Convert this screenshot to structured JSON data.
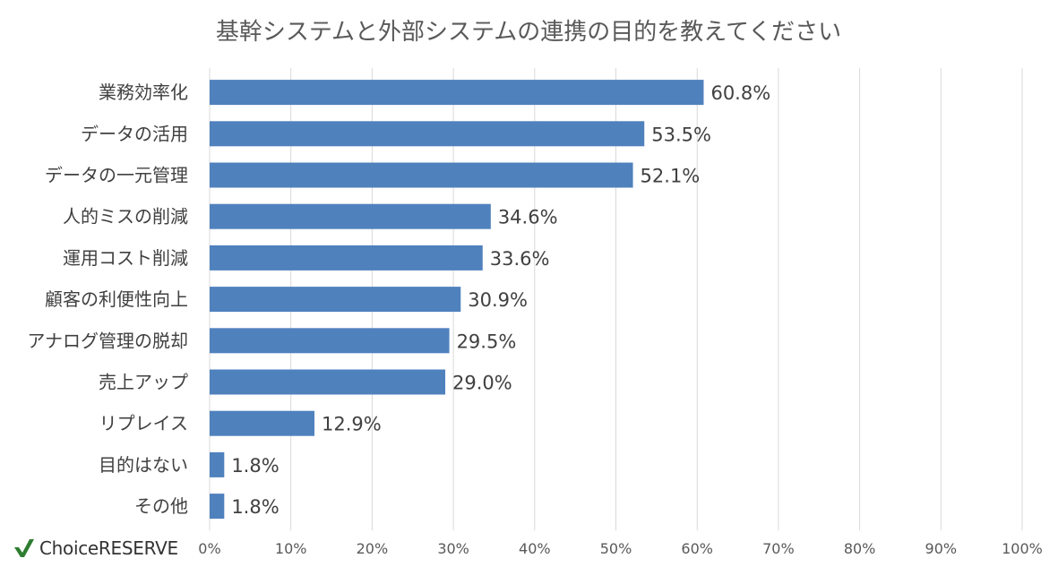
{
  "chart_data": {
    "type": "bar",
    "orientation": "horizontal",
    "title": "基幹システムと外部システムの連携の目的を教えてください",
    "categories": [
      "業務効率化",
      "データの活用",
      "データの一元管理",
      "人的ミスの削減",
      "運用コスト削減",
      "顧客の利便性向上",
      "アナログ管理の脱却",
      "売上アップ",
      "リプレイス",
      "目的はない",
      "その他"
    ],
    "values": [
      60.8,
      53.5,
      52.1,
      34.6,
      33.6,
      30.9,
      29.5,
      29.0,
      12.9,
      1.8,
      1.8
    ],
    "value_labels": [
      "60.8%",
      "53.5%",
      "52.1%",
      "34.6%",
      "33.6%",
      "30.9%",
      "29.5%",
      "29.0%",
      "12.9%",
      "1.8%",
      "1.8%"
    ],
    "xlim": [
      0,
      100
    ],
    "xticks": [
      "0%",
      "10%",
      "20%",
      "30%",
      "40%",
      "50%",
      "60%",
      "70%",
      "80%",
      "90%",
      "100%"
    ],
    "grid": true,
    "bar_color": "#4f81bd"
  },
  "brand": {
    "name": "ChoiceRESERVE",
    "mark_color": "#2e7d32"
  }
}
